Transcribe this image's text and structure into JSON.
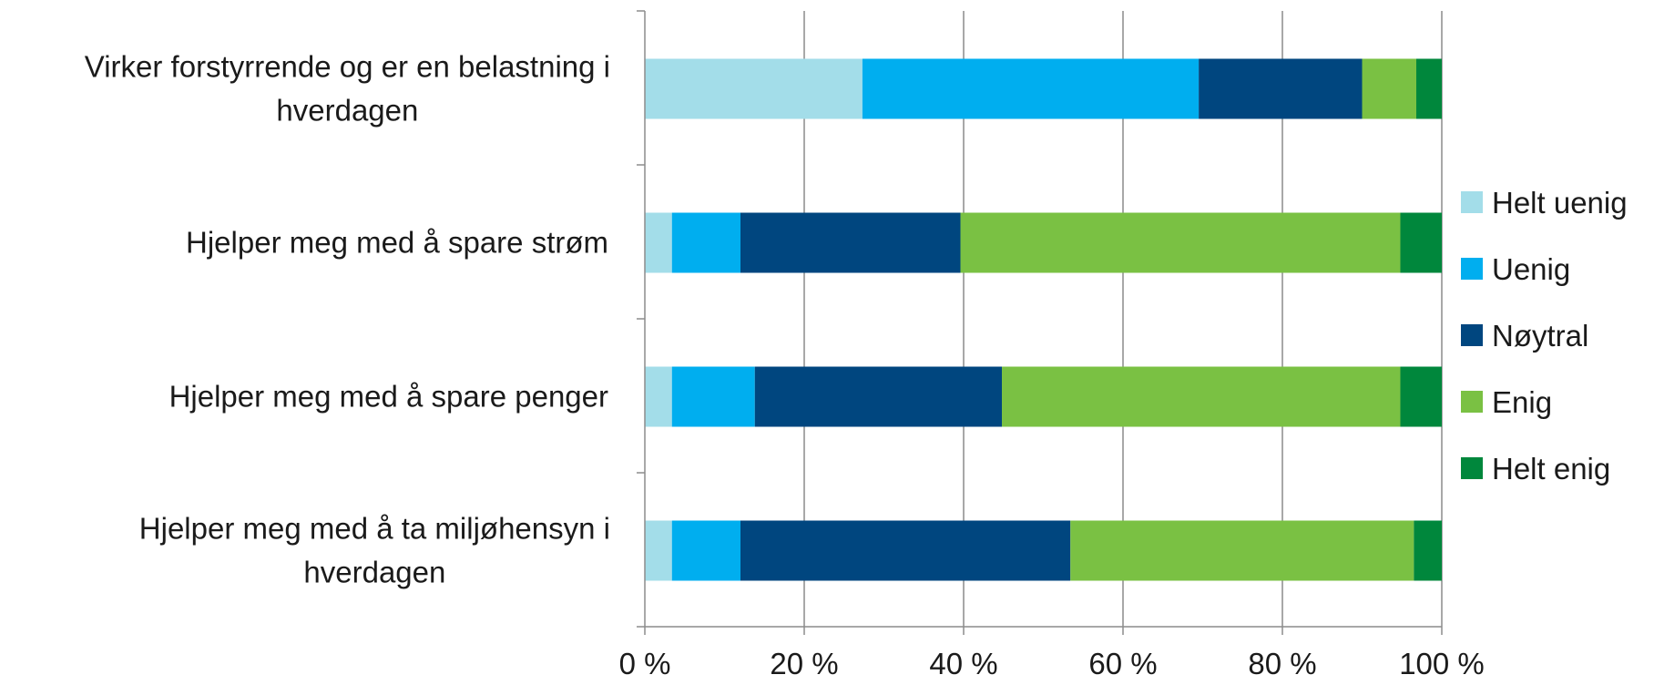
{
  "chart_data": {
    "type": "bar",
    "orientation": "horizontal",
    "stacked": "percent",
    "categories": [
      [
        "Virker forstyrrende og er en belastning i",
        "hverdagen"
      ],
      [
        "Hjelper meg med å spare strøm"
      ],
      [
        "Hjelper meg med å spare penger"
      ],
      [
        "Hjelper meg med å ta miljøhensyn i",
        "hverdagen"
      ]
    ],
    "series": [
      {
        "name": "Helt uenig",
        "color": "#a3dde9",
        "values": [
          27.3,
          3.4,
          3.4,
          3.4
        ]
      },
      {
        "name": "Uenig",
        "color": "#00aeef",
        "values": [
          42.2,
          8.6,
          10.4,
          8.6
        ]
      },
      {
        "name": "Nøytral",
        "color": "#00467f",
        "values": [
          20.5,
          27.6,
          31.0,
          41.4
        ]
      },
      {
        "name": "Enig",
        "color": "#7ac143",
        "values": [
          6.8,
          55.2,
          50.0,
          43.1
        ]
      },
      {
        "name": "Helt enig",
        "color": "#00873c",
        "values": [
          3.2,
          5.2,
          5.2,
          3.5
        ]
      }
    ],
    "x_ticks": [
      "0 %",
      "20 %",
      "40 %",
      "60 %",
      "80 %",
      "100 %"
    ],
    "x_tick_values": [
      0,
      20,
      40,
      60,
      80,
      100
    ],
    "xlim": [
      0,
      100
    ],
    "grid": true,
    "legend_position": "right",
    "title": "",
    "xlabel": "",
    "ylabel": ""
  }
}
